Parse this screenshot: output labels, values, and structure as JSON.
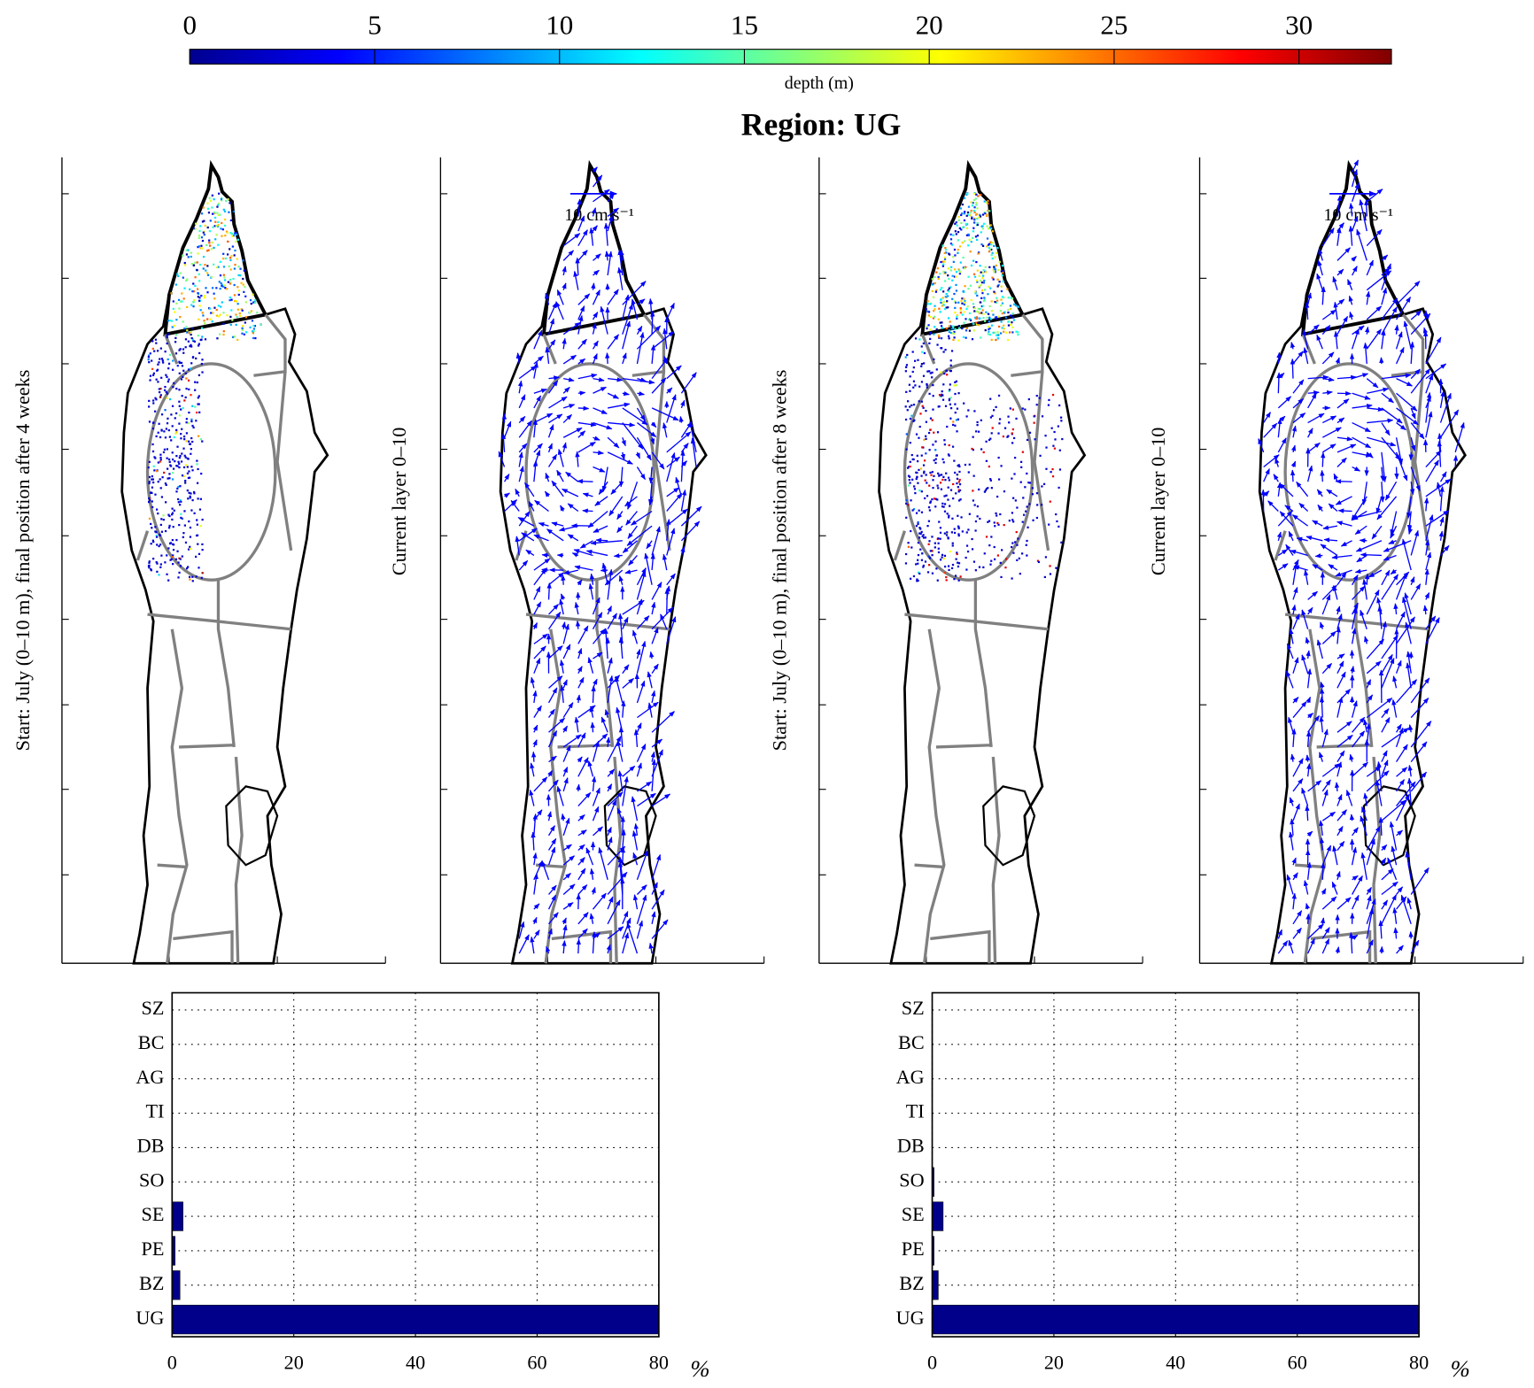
{
  "colorbar": {
    "label": "depth (m)",
    "lim": [
      0,
      32.5
    ],
    "ticks": [
      0,
      5,
      10,
      15,
      20,
      25,
      30
    ]
  },
  "title": "Region: UG",
  "panels": [
    {
      "ylabel": "Start: July (0–10 m), final position after 4 weeks"
    },
    {
      "ylabel": "Current layer 0–10",
      "scale_label": "10 cm s⁻¹"
    },
    {
      "ylabel": "Start: July (0–10 m), final position after 8 weeks"
    },
    {
      "ylabel": "Current layer 0–10",
      "scale_label": "10 cm s⁻¹"
    }
  ],
  "chart_data": [
    {
      "type": "bar",
      "orientation": "horizontal",
      "categories": [
        "SZ",
        "BC",
        "AG",
        "TI",
        "DB",
        "SO",
        "SE",
        "PE",
        "BZ",
        "UG"
      ],
      "values": [
        0,
        0,
        0,
        0,
        0,
        0,
        1.8,
        0.5,
        1.3,
        80
      ],
      "color": "#00008b",
      "xlim": [
        0,
        80
      ],
      "xticks": [
        0,
        20,
        40,
        60,
        80
      ],
      "xlabel": "%",
      "grid": true
    },
    {
      "type": "bar",
      "orientation": "horizontal",
      "categories": [
        "SZ",
        "BC",
        "AG",
        "TI",
        "DB",
        "SO",
        "SE",
        "PE",
        "BZ",
        "UG"
      ],
      "values": [
        0,
        0,
        0,
        0,
        0,
        0.3,
        1.8,
        0.3,
        1.0,
        80
      ],
      "color": "#00008b",
      "xlim": [
        0,
        80
      ],
      "xticks": [
        0,
        20,
        40,
        60,
        80
      ],
      "xlabel": "%",
      "grid": true
    }
  ]
}
